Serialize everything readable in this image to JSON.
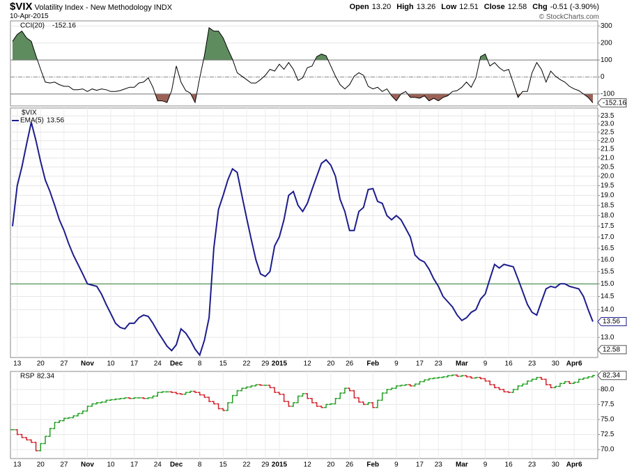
{
  "header": {
    "symbol": "$VIX",
    "name": "Volatility Index - New Methodology INDX",
    "date": "10-Apr-2015",
    "credit": "© StockCharts.com",
    "quote": [
      {
        "label": "Open",
        "value": "13.20"
      },
      {
        "label": "High",
        "value": "13.26"
      },
      {
        "label": "Low",
        "value": "12.51"
      },
      {
        "label": "Close",
        "value": "12.58"
      },
      {
        "label": "Chg",
        "value": "-0.51 (-3.90%)"
      }
    ]
  },
  "chart_data": [
    {
      "type": "line",
      "grid": true,
      "ylim": [
        -170,
        330
      ],
      "yticks": [
        300,
        200,
        100,
        0,
        -100
      ],
      "overbought": 100,
      "oversold": -100,
      "overbought_color": "#5e8c5e",
      "oversold_color": "#9c6156",
      "series": [
        {
          "name": "CCI(20)",
          "color": "#000000",
          "values": [
            210,
            250,
            270,
            230,
            210,
            125,
            45,
            -30,
            -35,
            -30,
            -45,
            -55,
            -55,
            -75,
            -75,
            -70,
            -85,
            -70,
            -78,
            -70,
            -75,
            -85,
            -85,
            -80,
            -70,
            -60,
            -60,
            -35,
            -30,
            -5,
            -60,
            -140,
            -140,
            -150,
            -80,
            65,
            -30,
            -80,
            -95,
            -150,
            -5,
            125,
            290,
            270,
            270,
            230,
            165,
            105,
            25,
            5,
            -15,
            -35,
            -35,
            -15,
            10,
            45,
            35,
            75,
            45,
            85,
            45,
            -20,
            -5,
            55,
            65,
            120,
            135,
            125,
            65,
            5,
            -45,
            -70,
            -45,
            5,
            25,
            10,
            -55,
            -70,
            -60,
            -85,
            -70,
            -110,
            -140,
            -100,
            -85,
            -120,
            -120,
            -125,
            -110,
            -140,
            -125,
            -140,
            -120,
            -110,
            -85,
            -80,
            -60,
            -30,
            -60,
            -5,
            120,
            135,
            65,
            85,
            55,
            35,
            45,
            -35,
            -120,
            -85,
            -85,
            25,
            85,
            45,
            -30,
            35,
            5,
            -15,
            -30,
            -55,
            -70,
            -80,
            -100,
            -120,
            -152.16
          ]
        }
      ]
    },
    {
      "type": "line",
      "log_scale": true,
      "grid": true,
      "symbol_label": "$VIX",
      "ylim": [
        12.32,
        24.0
      ],
      "yticks": [
        {
          "value": 13,
          "label": "13.0"
        },
        {
          "value": 14,
          "label": "14.0"
        },
        14.5,
        {
          "value": 15,
          "label": "15.0"
        },
        15.5,
        {
          "value": 16,
          "label": "16.0"
        },
        16.5,
        {
          "value": 17,
          "label": "17.0"
        },
        17.5,
        {
          "value": 18,
          "label": "18.0"
        },
        18.5,
        {
          "value": 19,
          "label": "19.0"
        },
        19.5,
        {
          "value": 20,
          "label": "20.0"
        },
        20.5,
        {
          "value": 21,
          "label": "21.0"
        },
        21.5,
        {
          "value": 22,
          "label": "22.0"
        },
        22.5,
        {
          "value": 23,
          "label": "23.0"
        },
        23.5
      ],
      "hline": {
        "value": 15,
        "color": "#2f7d32"
      },
      "categories": [
        null,
        "13",
        null,
        null,
        null,
        null,
        "20",
        null,
        null,
        null,
        null,
        "27",
        null,
        null,
        null,
        null,
        "Nov",
        null,
        null,
        null,
        null,
        "10",
        null,
        null,
        null,
        null,
        "17",
        null,
        null,
        null,
        null,
        "24",
        null,
        null,
        null,
        "Dec",
        null,
        null,
        null,
        null,
        "8",
        null,
        null,
        null,
        null,
        "15",
        null,
        null,
        null,
        null,
        "22",
        null,
        null,
        null,
        "29",
        null,
        null,
        "2015",
        null,
        null,
        null,
        null,
        null,
        "12",
        null,
        null,
        null,
        null,
        "20",
        null,
        null,
        null,
        "26",
        null,
        null,
        null,
        null,
        "Feb",
        null,
        null,
        null,
        null,
        "9",
        null,
        null,
        null,
        null,
        "17",
        null,
        null,
        null,
        "23",
        null,
        null,
        null,
        null,
        "Mar",
        null,
        null,
        null,
        null,
        "9",
        null,
        null,
        null,
        null,
        "16",
        null,
        null,
        null,
        null,
        "23",
        null,
        null,
        null,
        null,
        "30",
        null,
        null,
        null,
        "Apr6",
        null,
        null,
        null,
        null
      ],
      "series": [
        {
          "name": "EMA(5)",
          "color": "#1c1c8c",
          "values": [
            17.5,
            19.5,
            20.5,
            21.8,
            23.1,
            22.0,
            20.8,
            19.8,
            19.2,
            18.5,
            17.8,
            17.3,
            16.7,
            16.2,
            15.8,
            15.4,
            15.0,
            14.95,
            14.9,
            14.6,
            14.2,
            13.85,
            13.5,
            13.35,
            13.3,
            13.5,
            13.5,
            13.7,
            13.8,
            13.75,
            13.5,
            13.2,
            12.95,
            12.7,
            12.55,
            12.75,
            13.3,
            13.15,
            12.9,
            12.6,
            12.4,
            12.9,
            13.7,
            16.5,
            18.3,
            19.0,
            19.8,
            20.4,
            20.2,
            19.0,
            17.9,
            16.9,
            16.0,
            15.4,
            15.3,
            15.5,
            16.6,
            17.0,
            17.8,
            19.0,
            19.2,
            18.5,
            18.2,
            18.6,
            19.3,
            20.0,
            20.7,
            20.9,
            20.6,
            20.0,
            18.8,
            18.2,
            17.3,
            17.3,
            18.2,
            18.4,
            19.3,
            19.35,
            18.7,
            18.6,
            18.0,
            17.8,
            18.0,
            17.8,
            17.4,
            17.0,
            16.2,
            16.0,
            15.9,
            15.6,
            15.2,
            14.9,
            14.5,
            14.3,
            14.1,
            13.8,
            13.6,
            13.7,
            13.9,
            14.0,
            14.4,
            14.6,
            15.2,
            15.8,
            15.65,
            15.8,
            15.75,
            15.7,
            15.2,
            14.7,
            14.2,
            13.9,
            13.8,
            14.3,
            14.8,
            14.9,
            14.85,
            15.0,
            15.0,
            14.9,
            14.85,
            14.8,
            14.5,
            14.0,
            13.56
          ]
        }
      ]
    },
    {
      "type": "price_bars",
      "grid": true,
      "ylim": [
        68.5,
        83.0
      ],
      "yticks": [
        {
          "value": 80,
          "label": "80.0"
        },
        77.5,
        {
          "value": 75,
          "label": "75.0"
        },
        72.5,
        {
          "value": 70,
          "label": "70.0"
        }
      ],
      "categories": [
        null,
        "13",
        null,
        null,
        null,
        null,
        "20",
        null,
        null,
        null,
        null,
        "27",
        null,
        null,
        null,
        null,
        "Nov",
        null,
        null,
        null,
        null,
        "10",
        null,
        null,
        null,
        null,
        "17",
        null,
        null,
        null,
        null,
        "24",
        null,
        null,
        null,
        "Dec",
        null,
        null,
        null,
        null,
        "8",
        null,
        null,
        null,
        null,
        "15",
        null,
        null,
        null,
        null,
        "22",
        null,
        null,
        null,
        "29",
        null,
        null,
        "2015",
        null,
        null,
        null,
        null,
        null,
        "12",
        null,
        null,
        null,
        null,
        "20",
        null,
        null,
        null,
        "26",
        null,
        null,
        null,
        null,
        "Feb",
        null,
        null,
        null,
        null,
        "9",
        null,
        null,
        null,
        null,
        "17",
        null,
        null,
        null,
        "23",
        null,
        null,
        null,
        null,
        "Mar",
        null,
        null,
        null,
        null,
        "9",
        null,
        null,
        null,
        null,
        "16",
        null,
        null,
        null,
        null,
        "23",
        null,
        null,
        null,
        null,
        "30",
        null,
        null,
        null,
        "Apr6",
        null,
        null,
        null,
        null
      ],
      "series": [
        {
          "name": "RSP",
          "up_color": "#22a022",
          "down_color": "#d4202a",
          "values": [
            73.3,
            72.5,
            72.0,
            71.6,
            71.2,
            69.8,
            71.0,
            72.2,
            73.5,
            74.5,
            74.8,
            75.2,
            75.3,
            75.6,
            76.0,
            76.4,
            77.2,
            77.6,
            77.8,
            77.9,
            78.2,
            78.3,
            78.4,
            78.5,
            78.6,
            78.5,
            78.6,
            78.6,
            78.5,
            78.6,
            78.9,
            79.5,
            79.6,
            79.6,
            79.5,
            79.3,
            79.2,
            79.5,
            79.7,
            79.5,
            79.1,
            78.7,
            78.0,
            77.6,
            76.8,
            76.5,
            77.8,
            79.0,
            79.8,
            80.2,
            80.4,
            80.6,
            80.8,
            80.7,
            80.7,
            80.3,
            79.5,
            79.2,
            78.0,
            77.2,
            77.8,
            78.9,
            79.3,
            78.5,
            77.8,
            77.2,
            77.0,
            77.5,
            77.6,
            78.5,
            79.4,
            80.2,
            79.8,
            78.6,
            77.9,
            77.5,
            77.8,
            77.0,
            78.2,
            79.4,
            80.0,
            80.2,
            80.6,
            80.7,
            80.8,
            80.6,
            80.9,
            81.3,
            81.6,
            81.8,
            81.9,
            82.0,
            82.1,
            82.3,
            82.4,
            82.2,
            82.3,
            82.1,
            81.9,
            82.0,
            81.8,
            81.4,
            80.8,
            80.3,
            80.0,
            79.6,
            79.5,
            80.0,
            80.6,
            80.9,
            81.4,
            81.7,
            82.0,
            81.7,
            80.8,
            80.3,
            80.5,
            81.0,
            81.3,
            81.0,
            81.2,
            81.7,
            81.9,
            82.1,
            82.34
          ]
        }
      ]
    }
  ]
}
